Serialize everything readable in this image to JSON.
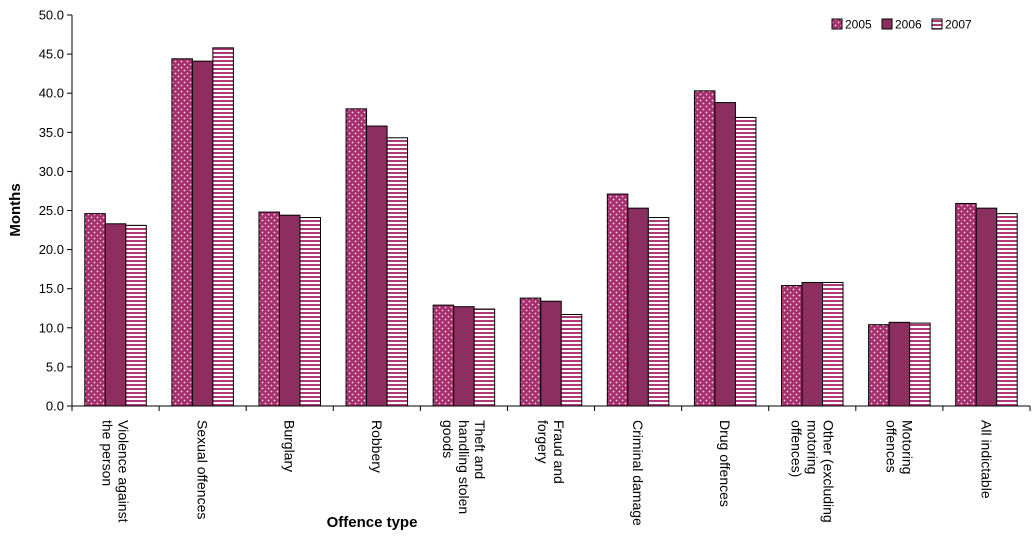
{
  "chart_data": {
    "type": "bar",
    "title": "",
    "xlabel": "Offence type",
    "ylabel": "Months",
    "ylim": [
      0,
      50
    ],
    "ytick_step": 5,
    "ytick_labels": [
      "0.0",
      "5.0",
      "10.0",
      "15.0",
      "20.0",
      "25.0",
      "30.0",
      "35.0",
      "40.0",
      "45.0",
      "50.0"
    ],
    "grid": false,
    "legend_position": "top-right",
    "categories": [
      [
        "Violence against",
        "the person"
      ],
      [
        "Sexual offences"
      ],
      [
        "Burglary"
      ],
      [
        "Robbery"
      ],
      [
        "Theft and",
        "handling stolen",
        "goods"
      ],
      [
        "Fraud and",
        "forgery"
      ],
      [
        "Criminal damage"
      ],
      [
        "Drug offences"
      ],
      [
        "Other (excluding",
        "motoring",
        "offences)"
      ],
      [
        "Motoring",
        "offences"
      ],
      [
        "All indictable"
      ]
    ],
    "series": [
      {
        "name": "2005",
        "color": "#a5306d",
        "pattern": "dots",
        "values": [
          24.6,
          44.4,
          24.8,
          38.0,
          12.9,
          13.8,
          27.1,
          40.3,
          15.4,
          10.4,
          25.9
        ]
      },
      {
        "name": "2006",
        "color": "#8c2f60",
        "pattern": "solid",
        "values": [
          23.3,
          44.1,
          24.4,
          35.8,
          12.7,
          13.4,
          25.3,
          38.8,
          15.8,
          10.7,
          25.3
        ]
      },
      {
        "name": "2007",
        "color": "#b03a78",
        "pattern": "stripes",
        "values": [
          23.1,
          45.8,
          24.1,
          34.3,
          12.4,
          11.7,
          24.1,
          36.9,
          15.8,
          10.6,
          24.6
        ]
      }
    ]
  }
}
